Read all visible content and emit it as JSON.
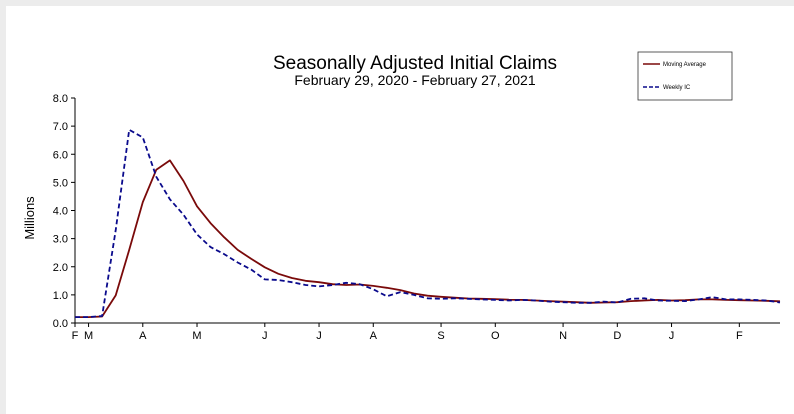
{
  "chart_data": {
    "type": "line",
    "title": "Seasonally Adjusted Initial Claims",
    "subtitle": "February 29, 2020 - February 27, 2021",
    "ylabel": "Millions",
    "xlabel": "",
    "ylim": [
      0,
      8
    ],
    "yticks": [
      "0.0",
      "1.0",
      "2.0",
      "3.0",
      "4.0",
      "5.0",
      "6.0",
      "7.0",
      "8.0"
    ],
    "xticks": [
      {
        "label": "F",
        "date": "2020-02-29"
      },
      {
        "label": "M",
        "date": "2020-03-07"
      },
      {
        "label": "A",
        "date": "2020-04-04"
      },
      {
        "label": "M",
        "date": "2020-05-02"
      },
      {
        "label": "J",
        "date": "2020-06-06"
      },
      {
        "label": "J",
        "date": "2020-07-04"
      },
      {
        "label": "A",
        "date": "2020-08-01"
      },
      {
        "label": "S",
        "date": "2020-09-05"
      },
      {
        "label": "O",
        "date": "2020-10-03"
      },
      {
        "label": "N",
        "date": "2020-11-07"
      },
      {
        "label": "D",
        "date": "2020-12-05"
      },
      {
        "label": "J",
        "date": "2021-01-02"
      },
      {
        "label": "F",
        "date": "2021-02-06"
      }
    ],
    "x": [
      "2020-02-29",
      "2020-03-07",
      "2020-03-14",
      "2020-03-21",
      "2020-03-28",
      "2020-04-04",
      "2020-04-11",
      "2020-04-18",
      "2020-04-25",
      "2020-05-02",
      "2020-05-09",
      "2020-05-16",
      "2020-05-23",
      "2020-05-30",
      "2020-06-06",
      "2020-06-13",
      "2020-06-20",
      "2020-06-27",
      "2020-07-04",
      "2020-07-11",
      "2020-07-18",
      "2020-07-25",
      "2020-08-01",
      "2020-08-08",
      "2020-08-15",
      "2020-08-22",
      "2020-08-29",
      "2020-09-05",
      "2020-09-12",
      "2020-09-19",
      "2020-09-26",
      "2020-10-03",
      "2020-10-10",
      "2020-10-17",
      "2020-10-24",
      "2020-10-31",
      "2020-11-07",
      "2020-11-14",
      "2020-11-21",
      "2020-11-28",
      "2020-12-05",
      "2020-12-12",
      "2020-12-19",
      "2020-12-26",
      "2021-01-02",
      "2021-01-09",
      "2021-01-16",
      "2021-01-23",
      "2021-01-30",
      "2021-02-06",
      "2021-02-13",
      "2021-02-20",
      "2021-02-27"
    ],
    "series": [
      {
        "name": "Moving Average",
        "color": "#7a0a0a",
        "style": "solid",
        "values": [
          0.21,
          0.21,
          0.23,
          0.98,
          2.6,
          4.3,
          5.45,
          5.78,
          5.05,
          4.15,
          3.55,
          3.05,
          2.6,
          2.28,
          1.98,
          1.75,
          1.6,
          1.5,
          1.45,
          1.38,
          1.35,
          1.37,
          1.32,
          1.25,
          1.17,
          1.05,
          0.97,
          0.93,
          0.9,
          0.87,
          0.86,
          0.85,
          0.83,
          0.82,
          0.8,
          0.78,
          0.76,
          0.74,
          0.72,
          0.73,
          0.74,
          0.78,
          0.8,
          0.82,
          0.8,
          0.81,
          0.84,
          0.84,
          0.82,
          0.81,
          0.8,
          0.79,
          0.77
        ]
      },
      {
        "name": "Weekly IC",
        "color": "#0a0a8c",
        "style": "dashed",
        "values": [
          0.21,
          0.21,
          0.25,
          3.3,
          6.87,
          6.6,
          5.2,
          4.4,
          3.85,
          3.15,
          2.7,
          2.45,
          2.15,
          1.9,
          1.55,
          1.53,
          1.45,
          1.35,
          1.3,
          1.35,
          1.43,
          1.38,
          1.2,
          0.95,
          1.1,
          1.0,
          0.88,
          0.86,
          0.88,
          0.86,
          0.84,
          0.82,
          0.8,
          0.82,
          0.8,
          0.76,
          0.74,
          0.72,
          0.72,
          0.76,
          0.73,
          0.86,
          0.88,
          0.8,
          0.79,
          0.78,
          0.84,
          0.92,
          0.84,
          0.84,
          0.82,
          0.8,
          0.73
        ]
      }
    ],
    "legend_position": "top-right",
    "grid": false
  }
}
